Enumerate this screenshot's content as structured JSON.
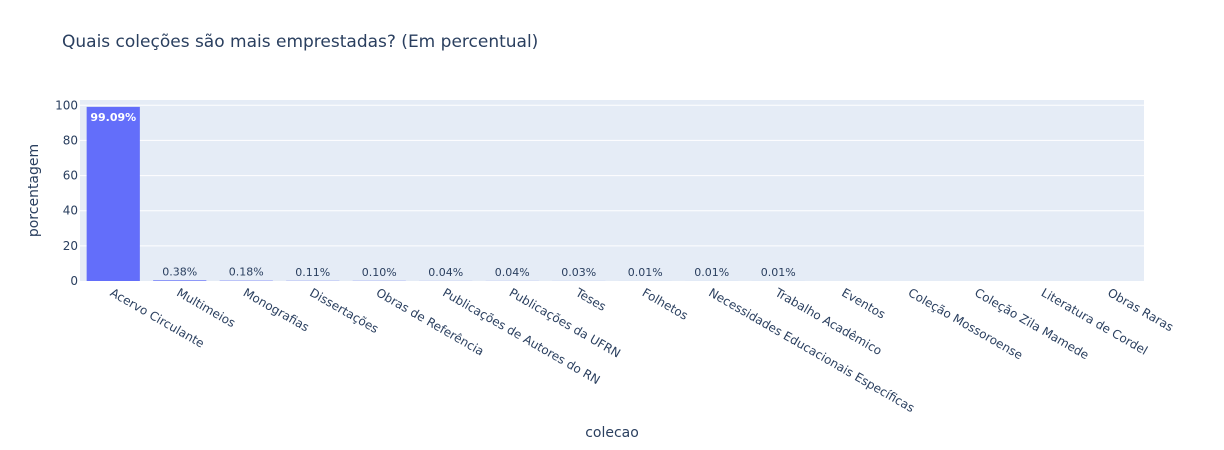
{
  "chart_data": {
    "type": "bar",
    "title": "Quais coleções são mais emprestadas? (Em percentual)",
    "xlabel": "colecao",
    "ylabel": "porcentagem",
    "ylim": [
      0,
      103
    ],
    "yticks": [
      0,
      20,
      40,
      60,
      80,
      100
    ],
    "grid": true,
    "categories": [
      "Acervo Circulante",
      "Multimeios",
      "Monografias",
      "Dissertações",
      "Obras de Referência",
      "Publicações de Autores do RN",
      "Publicações da UFRN",
      "Teses",
      "Folhetos",
      "Necessidades Educacionais Específicas",
      "Trabalho Acadêmico",
      "Eventos",
      "Coleção Mossoroense",
      "Coleção Zila Mamede",
      "Literatura de Cordel",
      "Obras Raras"
    ],
    "values": [
      99.09,
      0.38,
      0.18,
      0.11,
      0.1,
      0.04,
      0.04,
      0.03,
      0.01,
      0.01,
      0.01,
      0,
      0,
      0,
      0,
      0
    ],
    "data_labels": [
      "99.09%",
      "0.38%",
      "0.18%",
      "0.11%",
      "0.10%",
      "0.04%",
      "0.04%",
      "0.03%",
      "0.01%",
      "0.01%",
      "0.01%",
      "",
      "",
      "",
      "",
      ""
    ],
    "colors": {
      "bar": "#636efa",
      "plot_bg": "#e5ecf6",
      "grid": "#ffffff",
      "text": "#2a3f5f",
      "label_inside": "#ffffff",
      "label_outside": "#2a3f5f"
    }
  }
}
